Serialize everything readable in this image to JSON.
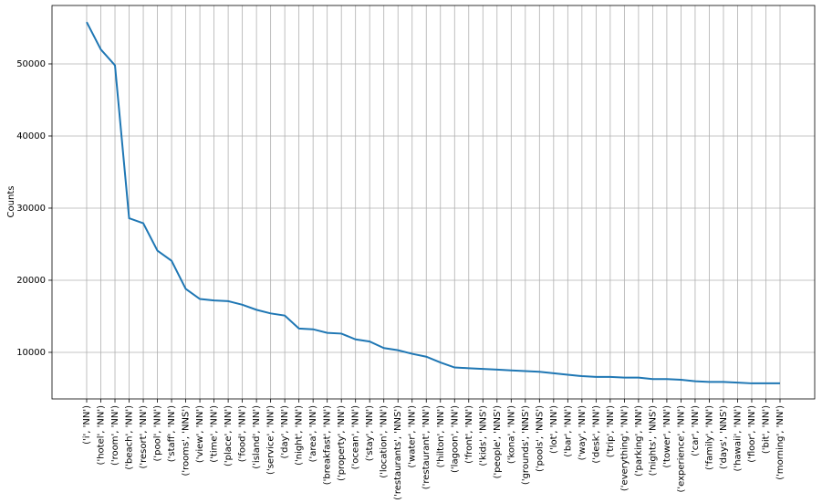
{
  "chart_data": {
    "type": "line",
    "ylabel": "Counts",
    "categories": [
      "('i', 'NN')",
      "('hotel', 'NN')",
      "('room', 'NN')",
      "('beach', 'NN')",
      "('resort', 'NN')",
      "('pool', 'NN')",
      "('staff', 'NN')",
      "('rooms', 'NNS')",
      "('view', 'NN')",
      "('time', 'NN')",
      "('place', 'NN')",
      "('food', 'NN')",
      "('island', 'NN')",
      "('service', 'NN')",
      "('day', 'NN')",
      "('night', 'NN')",
      "('area', 'NN')",
      "('breakfast', 'NN')",
      "('property', 'NN')",
      "('ocean', 'NN')",
      "('stay', 'NN')",
      "('location', 'NN')",
      "('restaurants', 'NNS')",
      "('water', 'NN')",
      "('restaurant', 'NN')",
      "('hilton', 'NN')",
      "('lagoon', 'NN')",
      "('front', 'NN')",
      "('kids', 'NNS')",
      "('people', 'NNS')",
      "('kona', 'NN')",
      "('grounds', 'NNS')",
      "('pools', 'NNS')",
      "('lot', 'NN')",
      "('bar', 'NN')",
      "('way', 'NN')",
      "('desk', 'NN')",
      "('trip', 'NN')",
      "('everything', 'NN')",
      "('parking', 'NN')",
      "('nights', 'NNS')",
      "('tower', 'NN')",
      "('experience', 'NN')",
      "('car', 'NN')",
      "('family', 'NN')",
      "('days', 'NNS')",
      "('hawaii', 'NN')",
      "('floor', 'NN')",
      "('bit', 'NN')",
      "('morning', 'NN')"
    ],
    "values": [
      55800,
      52000,
      49800,
      28600,
      27900,
      24100,
      22700,
      18800,
      17400,
      17200,
      17100,
      16600,
      15900,
      15400,
      15100,
      13300,
      13200,
      12700,
      12600,
      11800,
      11500,
      10600,
      10300,
      9800,
      9400,
      8600,
      7900,
      7800,
      7700,
      7600,
      7500,
      7400,
      7300,
      7100,
      6900,
      6700,
      6600,
      6600,
      6500,
      6500,
      6300,
      6300,
      6200,
      6000,
      5900,
      5900,
      5800,
      5700,
      5700,
      5700
    ],
    "color": "#1f77b4",
    "ylim": [
      3540,
      58100
    ],
    "yticks": [
      10000,
      20000,
      30000,
      40000,
      50000
    ],
    "grid": true
  }
}
